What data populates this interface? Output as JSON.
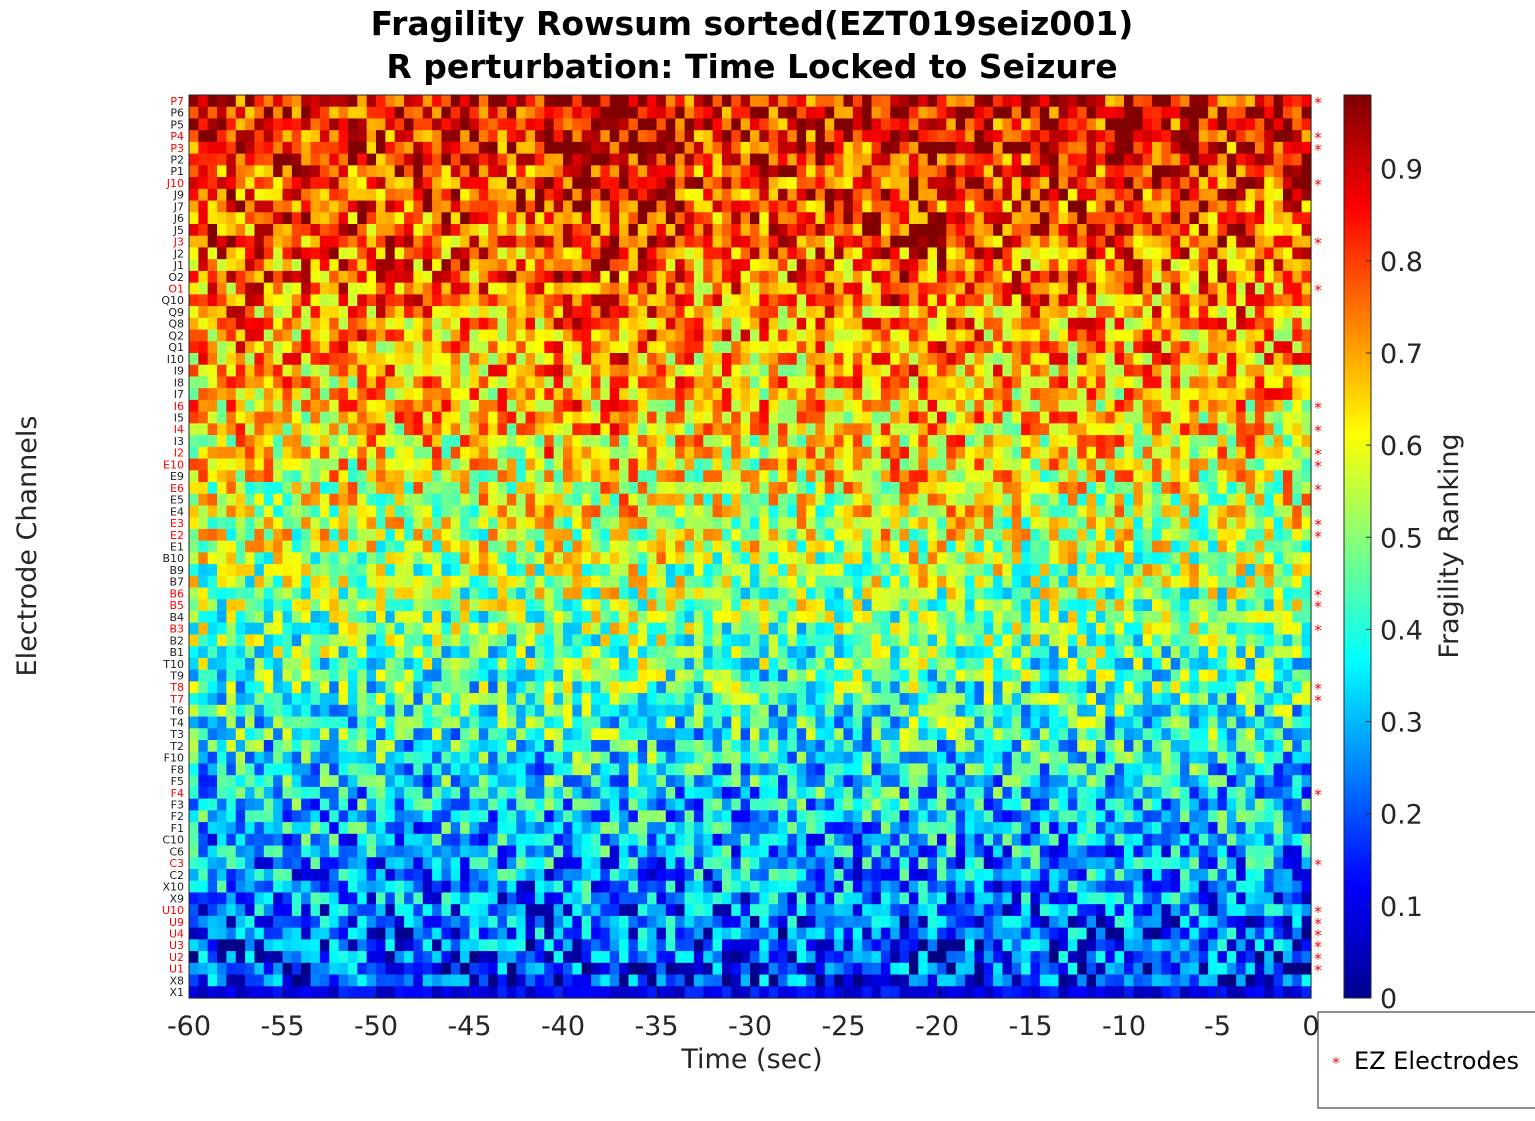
{
  "chart_data": {
    "type": "heatmap",
    "title": "Fragility Rowsum sorted(EZT019seiz001)",
    "subtitle": "R perturbation:  Time Locked to Seizure",
    "xlabel": "Time (sec)",
    "ylabel": "Electrode Channels",
    "colorbar_label": "Fragility Ranking",
    "colormap": "jet",
    "xlim": [
      -60,
      0
    ],
    "clim": [
      0,
      0.98
    ],
    "x_ticks": [
      "-60",
      "-55",
      "-50",
      "-45",
      "-40",
      "-35",
      "-30",
      "-25",
      "-20",
      "-15",
      "-10",
      "-5",
      "0"
    ],
    "colorbar_ticks": [
      "0",
      "0.1",
      "0.2",
      "0.3",
      "0.4",
      "0.5",
      "0.6",
      "0.7",
      "0.8",
      "0.9"
    ],
    "n_time_windows": 120,
    "channels": [
      "P7",
      "P6",
      "P5",
      "P4",
      "P3",
      "P2",
      "P1",
      "J10",
      "J9",
      "J7",
      "J6",
      "J5",
      "J3",
      "J2",
      "J1",
      "O2",
      "O1",
      "Q10",
      "Q9",
      "Q8",
      "Q2",
      "Q1",
      "I10",
      "I9",
      "I8",
      "I7",
      "I6",
      "I5",
      "I4",
      "I3",
      "I2",
      "E10",
      "E9",
      "E6",
      "E5",
      "E4",
      "E3",
      "E2",
      "E1",
      "B10",
      "B9",
      "B7",
      "B6",
      "B5",
      "B4",
      "B3",
      "B2",
      "B1",
      "T10",
      "T9",
      "T8",
      "T7",
      "T6",
      "T4",
      "T3",
      "T2",
      "F10",
      "F8",
      "F5",
      "F4",
      "F3",
      "F2",
      "F1",
      "C10",
      "C6",
      "C3",
      "C2",
      "X10",
      "X9",
      "U10",
      "U9",
      "U4",
      "U3",
      "U2",
      "U1",
      "X8",
      "X1"
    ],
    "ez_electrodes": [
      "P7",
      "P4",
      "P3",
      "J10",
      "J3",
      "O1",
      "I6",
      "I4",
      "I2",
      "E10",
      "E6",
      "E3",
      "E2",
      "B6",
      "B5",
      "B3",
      "T8",
      "T7",
      "F4",
      "C3",
      "U10",
      "U9",
      "U4",
      "U3",
      "U2",
      "U1"
    ],
    "legend": [
      {
        "marker": "*",
        "label": "EZ Electrodes",
        "color": "#ff0000"
      }
    ],
    "legend_position": "bottom-right",
    "ez_star_glyph": "*",
    "row_profile_note": "fragility decreases from top (~0.85) to bottom (~0.1)"
  }
}
